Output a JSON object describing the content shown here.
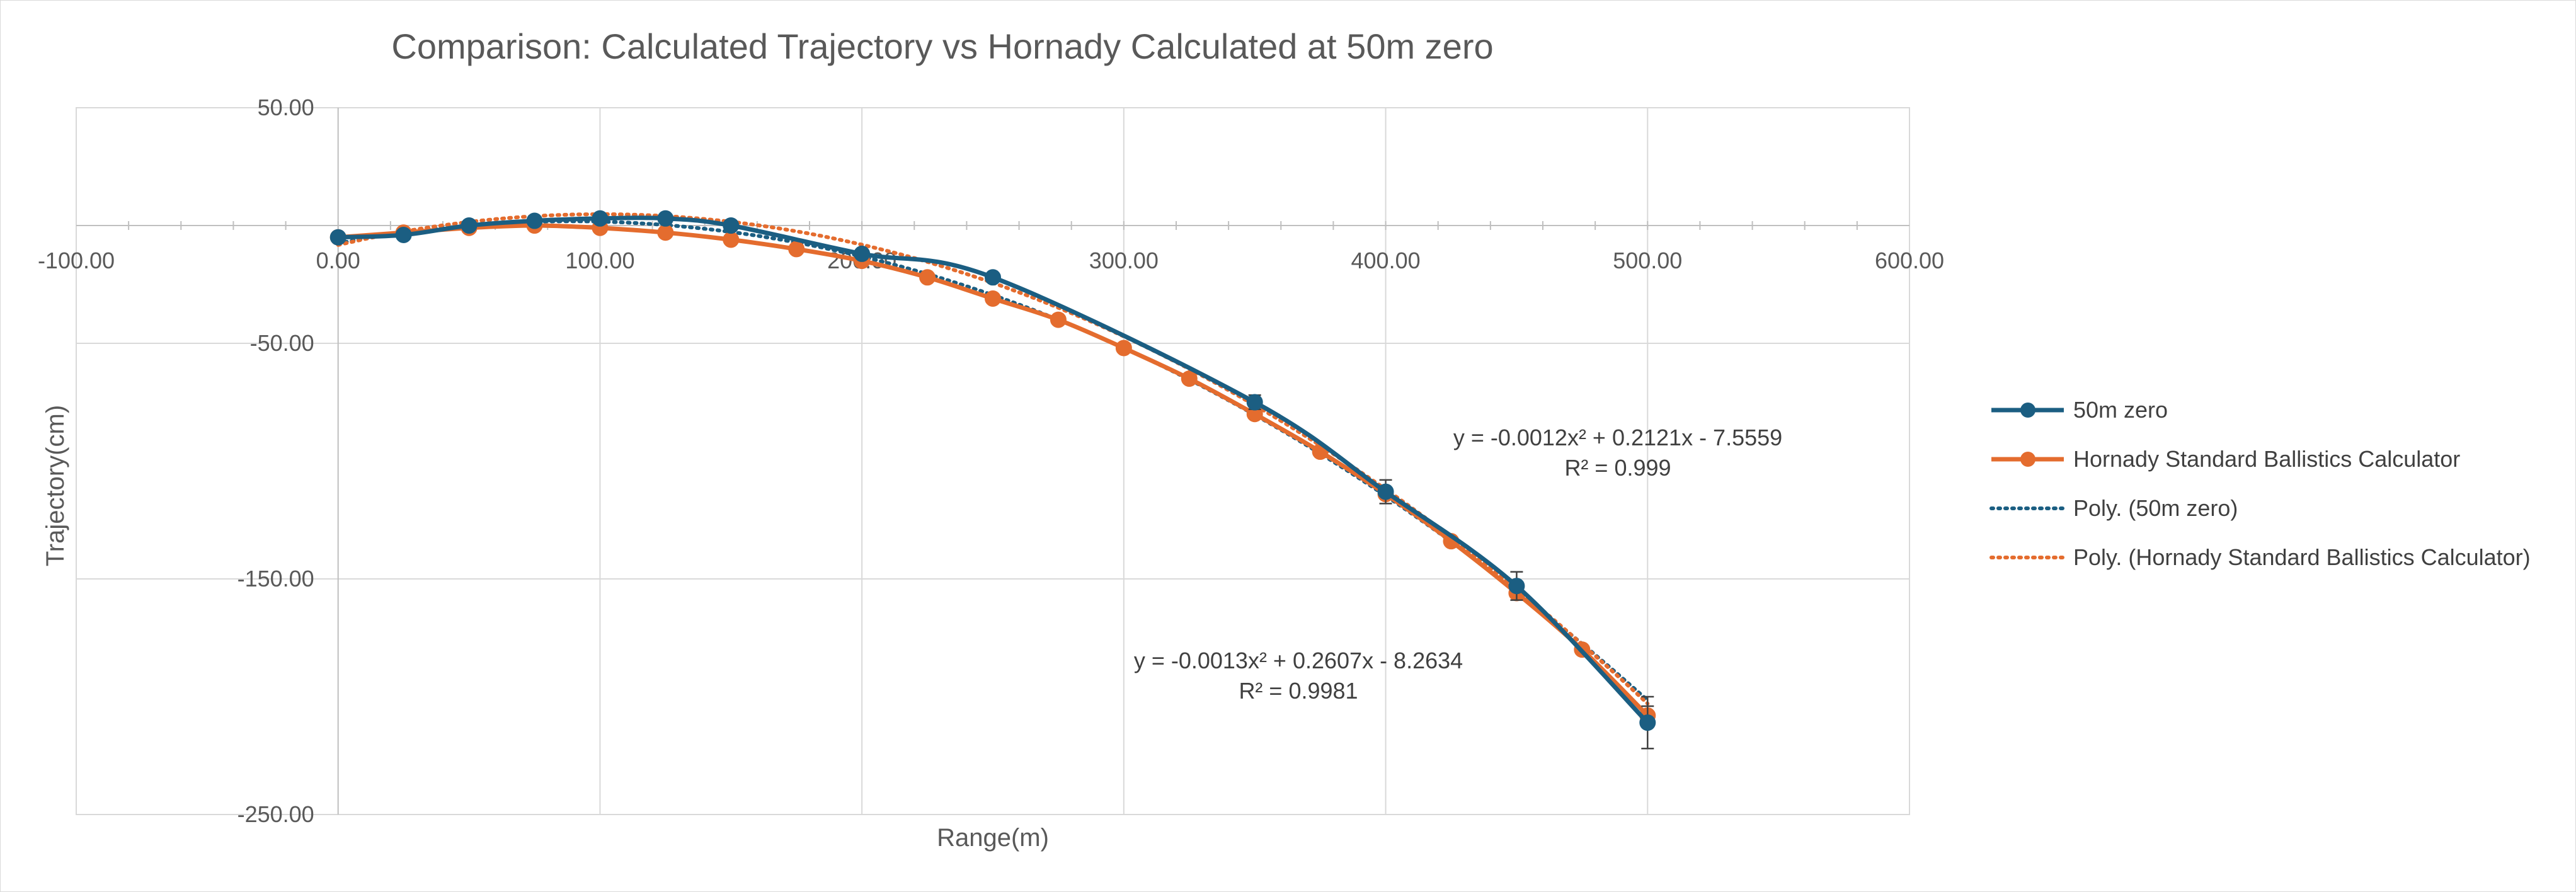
{
  "chart_data": {
    "type": "line",
    "title": "Comparison: Calculated Trajectory vs Hornady Calculated at 50m zero",
    "xlabel": "Range(m)",
    "ylabel": "Trajectory(cm)",
    "xlim": [
      -100,
      600
    ],
    "ylim": [
      -250,
      50
    ],
    "x_ticks": [
      "-100.00",
      "0.00",
      "100.00",
      "200.00",
      "300.00",
      "400.00",
      "500.00",
      "600.00"
    ],
    "y_ticks": [
      "50.00",
      "-50.00",
      "-150.00",
      "-250.00"
    ],
    "x_tick_values": [
      -100,
      0,
      100,
      200,
      300,
      400,
      500,
      600
    ],
    "y_tick_values": [
      50,
      -50,
      -150,
      -250
    ],
    "grid": true,
    "legend_position": "right",
    "series": [
      {
        "name": "50m zero",
        "color": "#1b5e82",
        "marker": "circle",
        "x": [
          0,
          25,
          50,
          75,
          100,
          125,
          150,
          200,
          250,
          350,
          400,
          450,
          500
        ],
        "y": [
          -5,
          -4,
          0,
          2,
          3,
          3,
          0,
          -12,
          -22,
          -75,
          -113,
          -153,
          -211
        ],
        "error": [
          0,
          0,
          0,
          0,
          0,
          0,
          0,
          0,
          0,
          3,
          5,
          6,
          11
        ]
      },
      {
        "name": "Hornady Standard Ballistics Calculator",
        "color": "#e46c2e",
        "marker": "circle",
        "x": [
          0,
          25,
          50,
          75,
          100,
          125,
          150,
          175,
          200,
          225,
          250,
          275,
          300,
          325,
          350,
          375,
          400,
          425,
          450,
          475,
          500
        ],
        "y": [
          -5,
          -3,
          -1,
          0,
          -1,
          -3,
          -6,
          -10,
          -15,
          -22,
          -31,
          -40,
          -52,
          -65,
          -80,
          -96,
          -114,
          -134,
          -156,
          -180,
          -208
        ],
        "error": [
          0,
          0,
          0,
          0,
          0,
          0,
          0,
          0,
          0,
          0,
          0,
          0,
          0,
          0,
          0,
          0,
          0,
          0,
          0,
          0,
          4
        ]
      }
    ],
    "trendlines": [
      {
        "name": "Poly. (50m zero)",
        "color": "#1b5e82",
        "style": "dotted",
        "equation": "y = -0.0012x² + 0.2121x - 7.5559",
        "r_squared": "R² = 0.999",
        "coefficients": [
          -0.0012,
          0.2121,
          -7.5559
        ]
      },
      {
        "name": "Poly. (Hornady Standard Ballistics Calculator)",
        "color": "#e46c2e",
        "style": "dotted",
        "equation": "y = -0.0013x² + 0.2607x - 8.2634",
        "r_squared": "R² = 0.9981",
        "coefficients": [
          -0.0013,
          0.2607,
          -8.2634
        ]
      }
    ]
  }
}
